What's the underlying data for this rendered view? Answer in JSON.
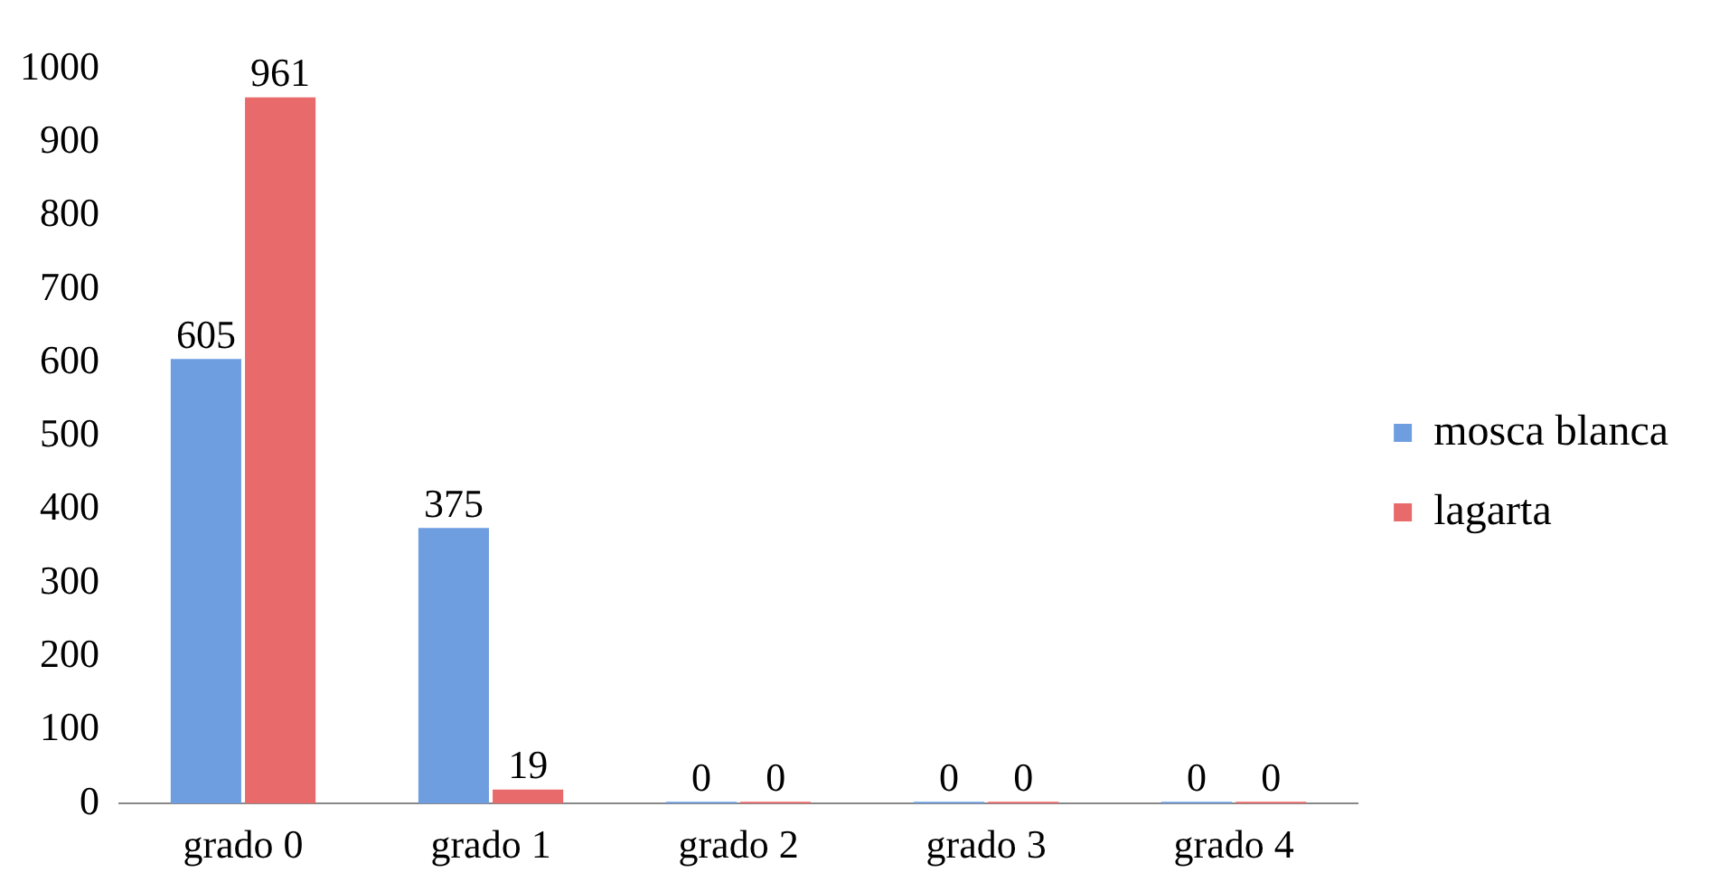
{
  "chart_data": {
    "type": "bar",
    "categories": [
      "grado 0",
      "grado 1",
      "grado 2",
      "grado 3",
      "grado 4"
    ],
    "series": [
      {
        "name": "mosca blanca",
        "color": "#6f9ee0",
        "values": [
          605,
          375,
          0,
          0,
          0
        ]
      },
      {
        "name": "lagarta",
        "color": "#e86a6a",
        "values": [
          961,
          19,
          0,
          0,
          0
        ]
      }
    ],
    "ylim": [
      0,
      1000
    ],
    "yticks": [
      0,
      100,
      200,
      300,
      400,
      500,
      600,
      700,
      800,
      900,
      1000
    ],
    "grid": false,
    "legend": "right",
    "data_labels": true
  }
}
